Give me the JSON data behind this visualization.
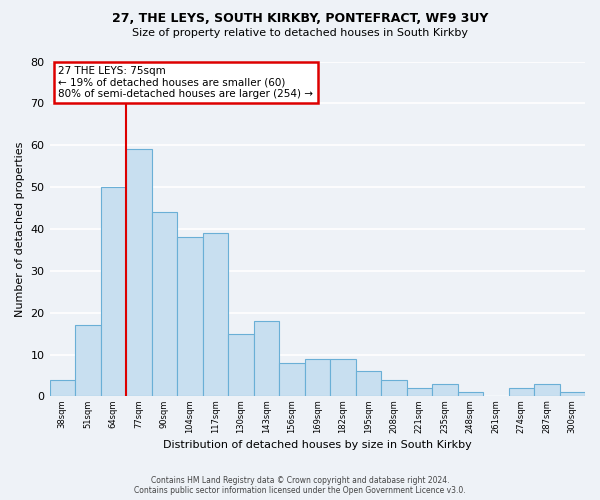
{
  "title1": "27, THE LEYS, SOUTH KIRKBY, PONTEFRACT, WF9 3UY",
  "title2": "Size of property relative to detached houses in South Kirkby",
  "xlabel": "Distribution of detached houses by size in South Kirkby",
  "ylabel": "Number of detached properties",
  "bin_labels": [
    "38sqm",
    "51sqm",
    "64sqm",
    "77sqm",
    "90sqm",
    "104sqm",
    "117sqm",
    "130sqm",
    "143sqm",
    "156sqm",
    "169sqm",
    "182sqm",
    "195sqm",
    "208sqm",
    "221sqm",
    "235sqm",
    "248sqm",
    "261sqm",
    "274sqm",
    "287sqm",
    "300sqm"
  ],
  "bar_heights": [
    4,
    17,
    50,
    59,
    44,
    38,
    39,
    15,
    18,
    8,
    9,
    9,
    6,
    4,
    2,
    3,
    1,
    0,
    2,
    3,
    1
  ],
  "bar_color": "#c8dff0",
  "bar_edge_color": "#6aafd6",
  "annotation_title": "27 THE LEYS: 75sqm",
  "annotation_line1": "← 19% of detached houses are smaller (60)",
  "annotation_line2": "80% of semi-detached houses are larger (254) →",
  "annotation_box_facecolor": "#ffffff",
  "annotation_box_edgecolor": "#dd0000",
  "vline_color": "#dd0000",
  "footer1": "Contains HM Land Registry data © Crown copyright and database right 2024.",
  "footer2": "Contains public sector information licensed under the Open Government Licence v3.0.",
  "ylim": [
    0,
    80
  ],
  "yticks": [
    0,
    10,
    20,
    30,
    40,
    50,
    60,
    70,
    80
  ],
  "bg_color": "#eef2f7",
  "grid_color": "#ffffff",
  "vline_x_bin": 3
}
